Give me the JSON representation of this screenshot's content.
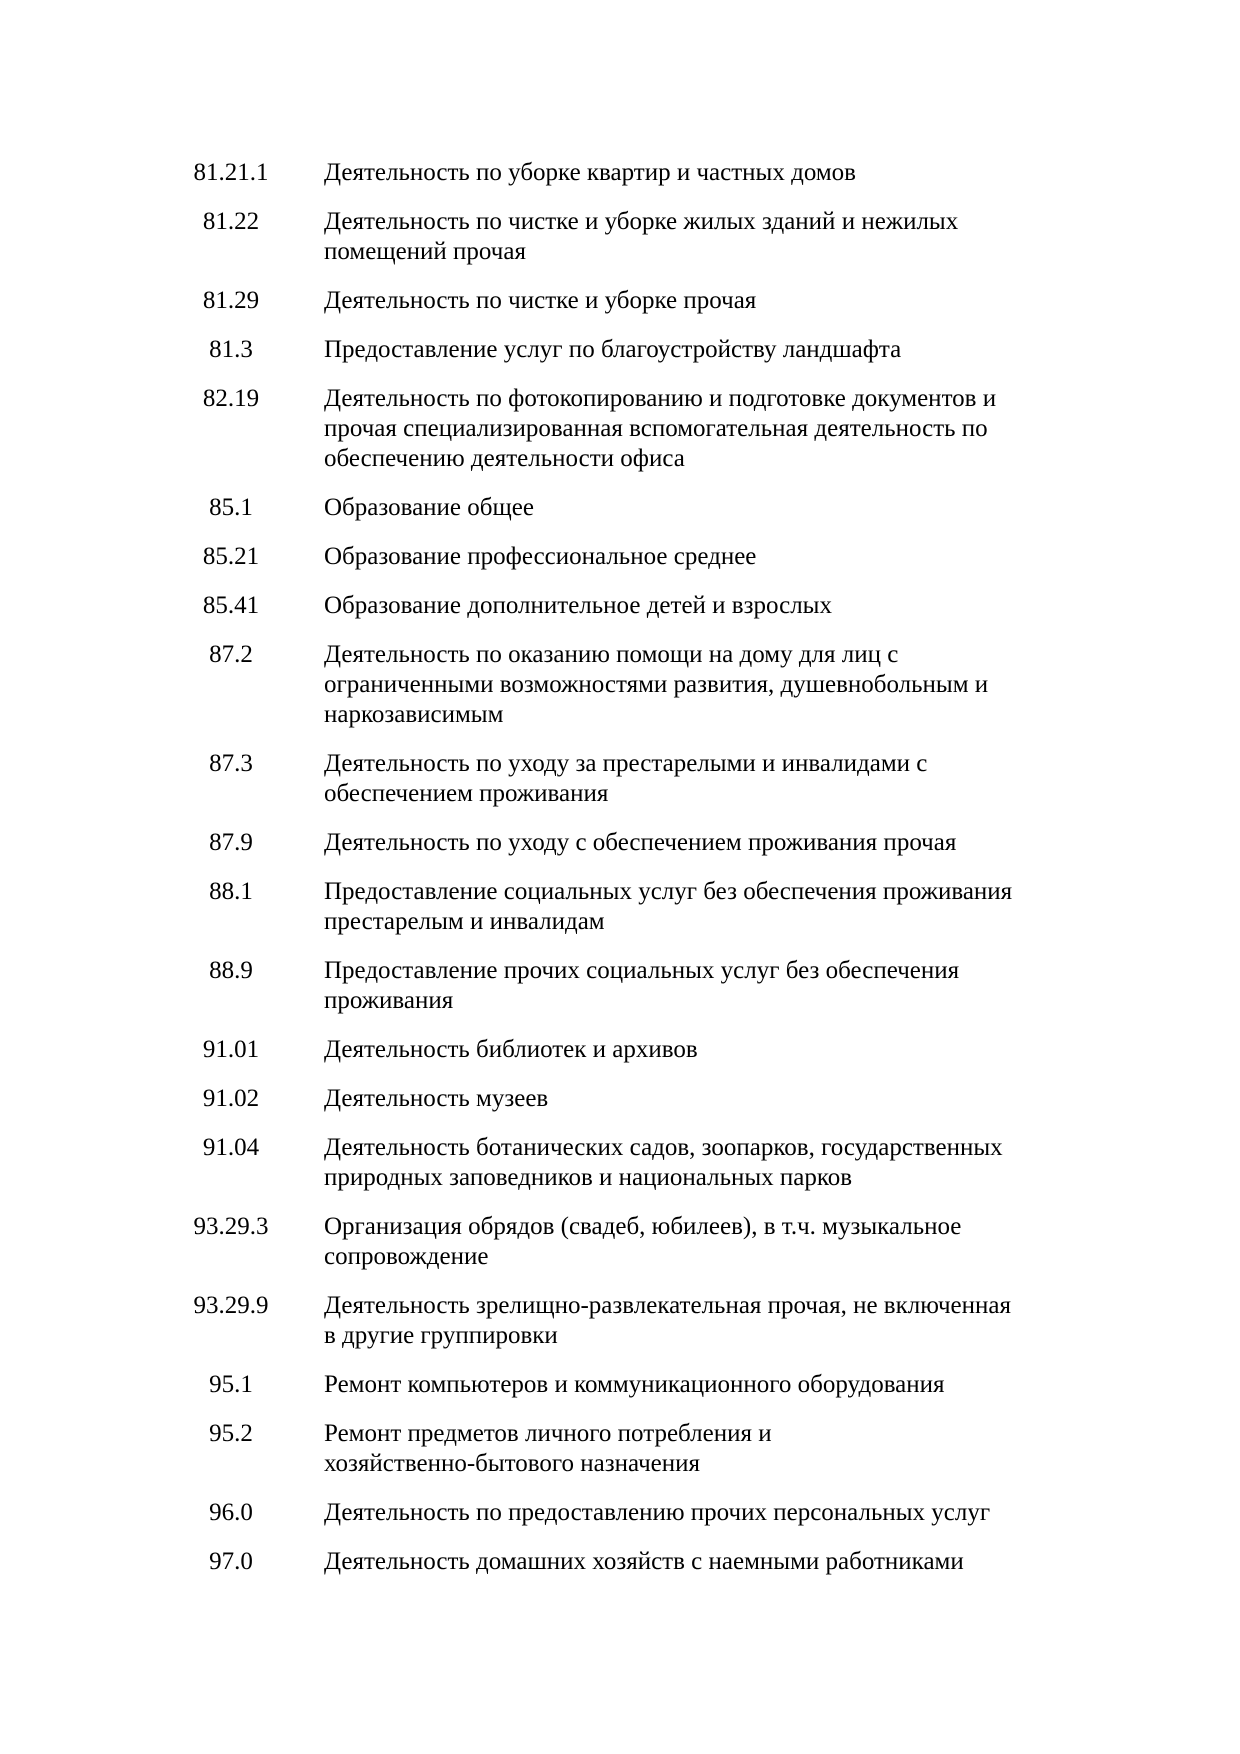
{
  "page": {
    "background_color": "#ffffff",
    "text_color": "#000000"
  },
  "rows": [
    {
      "code": "81.21.1",
      "description": [
        "Деятельность по уборке квартир и частных домов"
      ]
    },
    {
      "code": "81.22",
      "description": [
        "Деятельность по чистке и уборке жилых зданий и нежилых",
        "помещений прочая"
      ]
    },
    {
      "code": "81.29",
      "description": [
        "Деятельность по чистке и уборке прочая"
      ]
    },
    {
      "code": "81.3",
      "description": [
        "Предоставление услуг по благоустройству ландшафта"
      ]
    },
    {
      "code": "82.19",
      "description": [
        "Деятельность по фотокопированию и подготовке документов и",
        "прочая специализированная вспомогательная деятельность по",
        "обеспечению деятельности офиса"
      ]
    },
    {
      "code": "85.1",
      "description": [
        "Образование общее"
      ]
    },
    {
      "code": "85.21",
      "description": [
        "Образование профессиональное среднее"
      ]
    },
    {
      "code": "85.41",
      "description": [
        "Образование дополнительное детей и взрослых"
      ]
    },
    {
      "code": "87.2",
      "description": [
        "Деятельность по оказанию помощи на дому для лиц с",
        "ограниченными возможностями развития, душевнобольным и",
        "наркозависимым"
      ]
    },
    {
      "code": "87.3",
      "description": [
        "Деятельность по уходу за престарелыми и инвалидами с",
        "обеспечением проживания"
      ]
    },
    {
      "code": "87.9",
      "description": [
        "Деятельность по уходу с обеспечением проживания прочая"
      ]
    },
    {
      "code": "88.1",
      "description": [
        "Предоставление социальных услуг без обеспечения проживания",
        "престарелым и инвалидам"
      ]
    },
    {
      "code": "88.9",
      "description": [
        "Предоставление прочих социальных услуг без обеспечения",
        "проживания"
      ]
    },
    {
      "code": "91.01",
      "description": [
        "Деятельность библиотек и архивов"
      ]
    },
    {
      "code": "91.02",
      "description": [
        "Деятельность музеев"
      ]
    },
    {
      "code": "91.04",
      "description": [
        "Деятельность ботанических садов, зоопарков, государственных",
        "природных заповедников и национальных парков"
      ]
    },
    {
      "code": "93.29.3",
      "description": [
        "Организация обрядов (свадеб, юбилеев), в т.ч. музыкальное",
        "сопровождение"
      ]
    },
    {
      "code": "93.29.9",
      "description": [
        "Деятельность зрелищно-развлекательная прочая, не включенная",
        "в другие группировки"
      ]
    },
    {
      "code": "95.1",
      "description": [
        "Ремонт компьютеров и коммуникационного оборудования"
      ]
    },
    {
      "code": "95.2",
      "description": [
        "Ремонт предметов личного потребления и",
        "хозяйственно-бытового назначения"
      ]
    },
    {
      "code": "96.0",
      "description": [
        "Деятельность по предоставлению прочих персональных услуг"
      ]
    },
    {
      "code": "97.0",
      "description": [
        "Деятельность домашних хозяйств с наемными работниками"
      ]
    }
  ]
}
